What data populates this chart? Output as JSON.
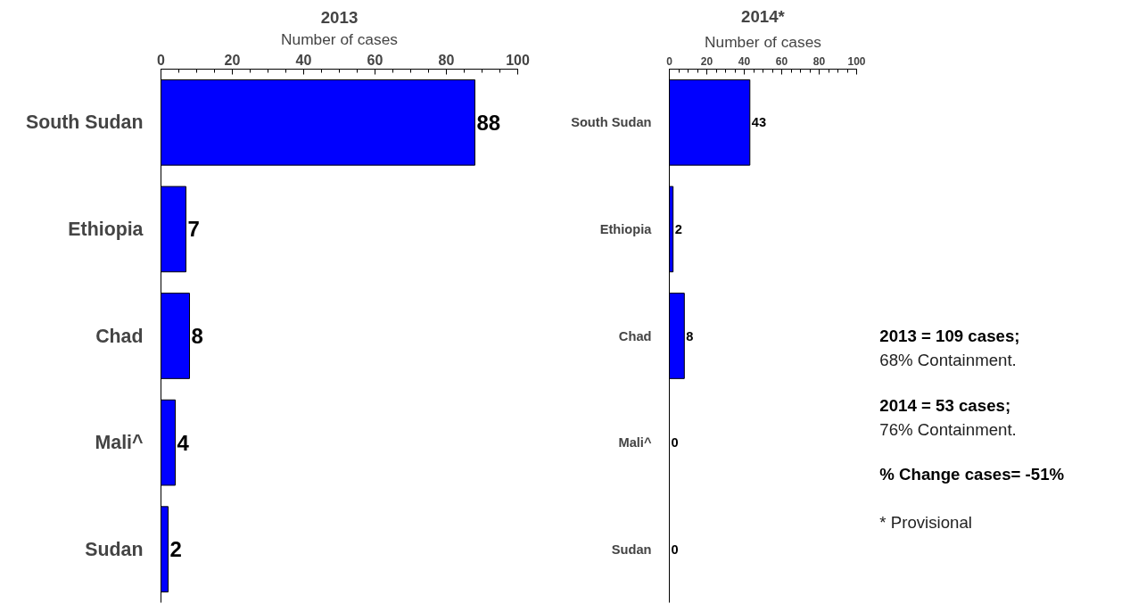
{
  "chart_data": [
    {
      "type": "bar",
      "orientation": "horizontal",
      "title": "2013",
      "xlabel": "Number of cases",
      "categories": [
        "South Sudan",
        "Ethiopia",
        "Chad",
        "Mali^",
        "Sudan"
      ],
      "values": [
        88,
        7,
        8,
        4,
        2
      ],
      "color": "#0000ff",
      "xlim": [
        0,
        100
      ],
      "xticks": [
        0,
        20,
        40,
        60,
        80,
        100
      ],
      "data_labels": true,
      "grid": false
    },
    {
      "type": "bar",
      "orientation": "horizontal",
      "title": "2014*",
      "xlabel": "Number of cases",
      "categories": [
        "South Sudan",
        "Ethiopia",
        "Chad",
        "Mali^",
        "Sudan"
      ],
      "values": [
        43,
        2,
        8,
        0,
        0
      ],
      "color": "#0000ff",
      "xlim": [
        0,
        100
      ],
      "xticks": [
        0,
        20,
        40,
        60,
        80,
        100
      ],
      "data_labels": true,
      "grid": false
    },
    {
      "type": "other",
      "annotations": [
        "2013 = 109 cases;",
        "68% Containment.",
        "2014 = 53 cases;",
        "76% Containment.",
        "% Change cases= -51%",
        "* Provisional"
      ]
    }
  ]
}
